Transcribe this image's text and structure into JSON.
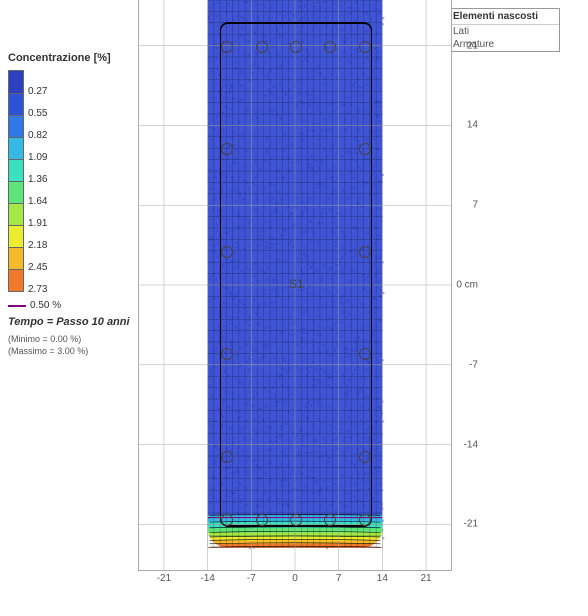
{
  "legend": {
    "title": "Concentrazione [%]",
    "colors": [
      "#2e3fbf",
      "#2e52d8",
      "#2f7ae8",
      "#34b8e4",
      "#3ae2c0",
      "#5de47a",
      "#a4e847",
      "#ecec2f",
      "#f5b92a",
      "#f07a2a"
    ],
    "ticks": [
      "0.27",
      "0.55",
      "0.82",
      "1.09",
      "1.36",
      "1.64",
      "1.91",
      "2.18",
      "2.45",
      "2.73"
    ],
    "threshold_label": "0.50 %",
    "threshold_color": "#800080"
  },
  "time_label_prefix": "Tempo = ",
  "time_label_value": "Passo 10 anni",
  "min_label": "(Minimo  = 0.00 %)",
  "max_label": "(Massimo = 3.00 %)",
  "hidden_panel": {
    "title": "Elementi nascosti",
    "items": [
      "Lati",
      "Armature"
    ]
  },
  "axes": {
    "x_ticks": [
      -21,
      -14,
      -7,
      0,
      7,
      14,
      21
    ],
    "y_ticks": [
      21,
      14,
      7,
      0,
      -7,
      -14,
      -21
    ],
    "y_unit_label": "0 cm"
  },
  "geometry": {
    "x_range": [
      -25,
      25
    ],
    "y_range": [
      -25,
      25
    ],
    "section_x": [
      -14,
      14
    ],
    "section_y": [
      -23,
      25
    ],
    "cover_cm": 2,
    "rebar_diameter_cm": 1.6,
    "rebar_rows_y": [
      21,
      12,
      3,
      -6,
      -15,
      -20.5
    ],
    "rebar_cols_x_outer": [
      -11,
      -5.5,
      0,
      5.5,
      11
    ],
    "center_label": "S1"
  },
  "heat": {
    "bg_color": "#3f55d6",
    "noise_color": "#2e3fbf",
    "stops_start_y_cm": -19.5,
    "stops": [
      {
        "y_cm": -19.5,
        "color": "#3f55d6"
      },
      {
        "y_cm": -20.2,
        "color": "#34b8e4"
      },
      {
        "y_cm": -20.8,
        "color": "#3ae2c0"
      },
      {
        "y_cm": -21.3,
        "color": "#5de47a"
      },
      {
        "y_cm": -21.7,
        "color": "#a4e847"
      },
      {
        "y_cm": -22.1,
        "color": "#ecec2f"
      },
      {
        "y_cm": -22.4,
        "color": "#f5b92a"
      },
      {
        "y_cm": -22.7,
        "color": "#f07a2a"
      },
      {
        "y_cm": -23.0,
        "color": "#e84a2a"
      }
    ],
    "isoline_y_cm": -20.4
  },
  "fine_grid_step_cm": 1,
  "coarse_grid_step_cm": 7
}
